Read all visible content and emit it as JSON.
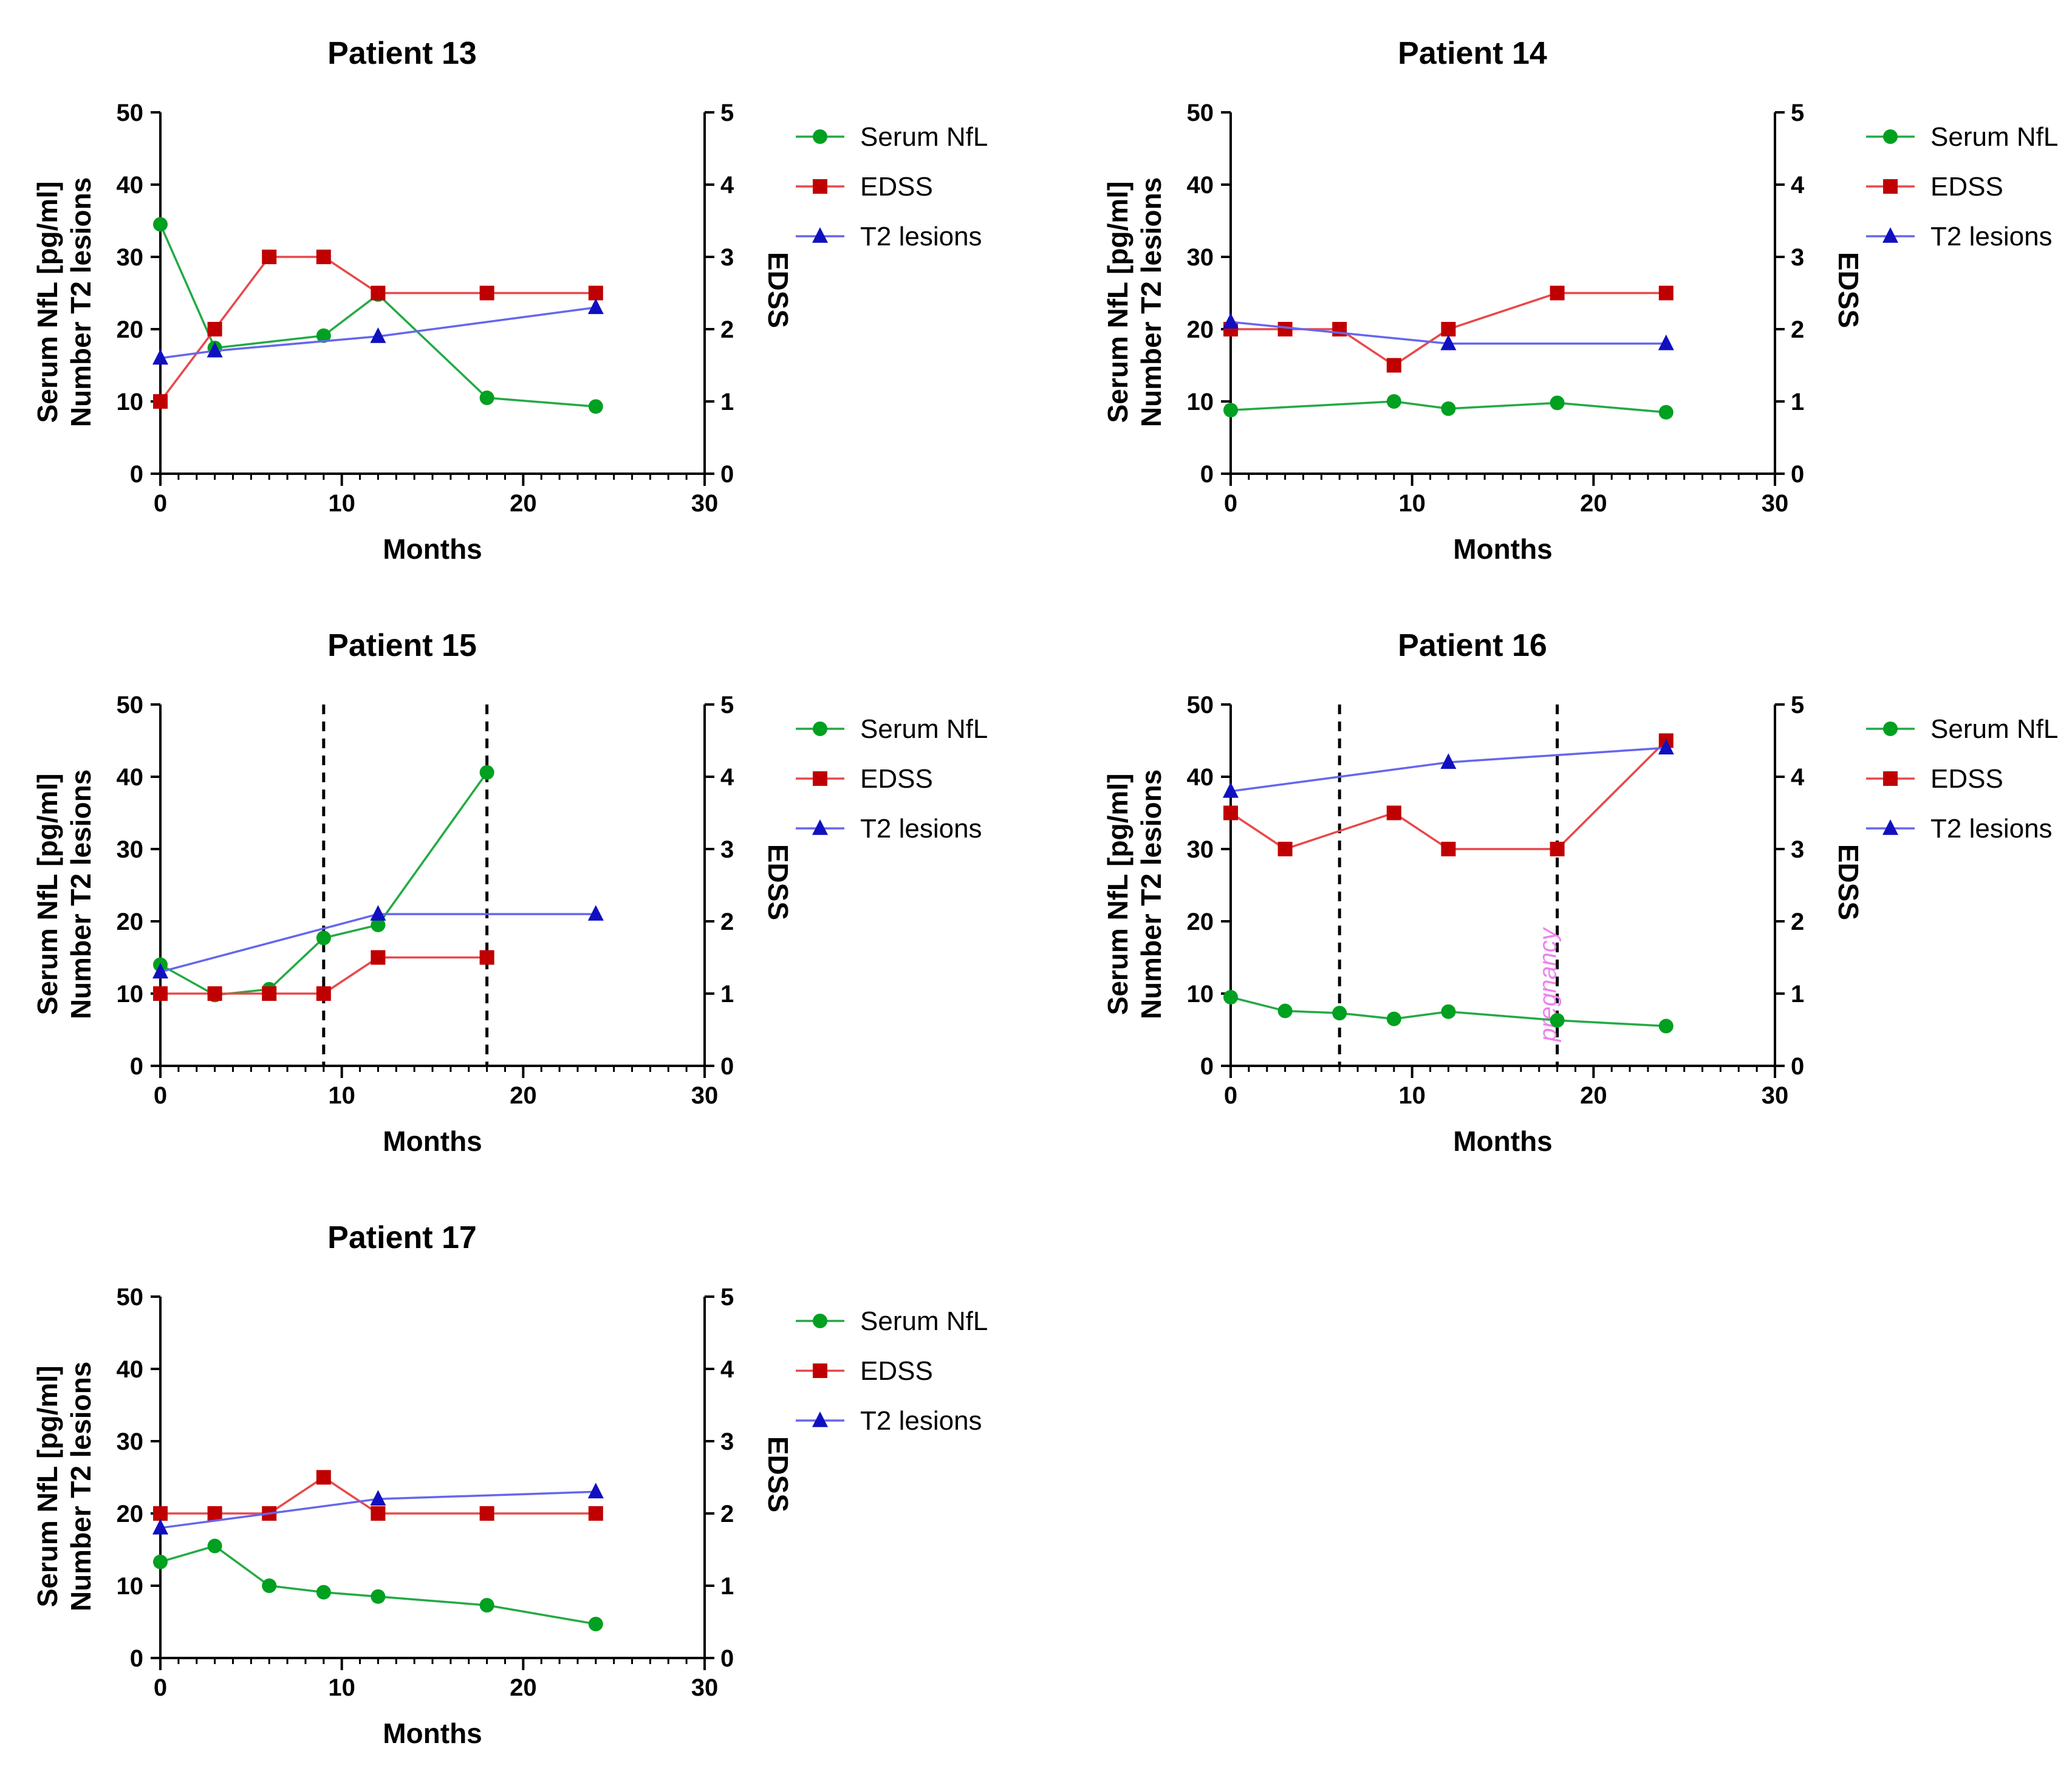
{
  "chart_data": [
    {
      "type": "line",
      "title": "Patient 13",
      "xlabel": "Months",
      "ylabel": [
        "Serum NfL [pg/ml]",
        "Number T2 lesions"
      ],
      "y2label": "EDSS",
      "xlim": [
        0,
        30
      ],
      "ylim": [
        0,
        50
      ],
      "y2lim": [
        0,
        5
      ],
      "xticks": [
        "0",
        "10",
        "20",
        "30"
      ],
      "yticks": [
        "0",
        "10",
        "20",
        "30",
        "40",
        "50"
      ],
      "y2ticks": [
        "0",
        "1",
        "2",
        "3",
        "4",
        "5"
      ],
      "series": [
        {
          "name": "Serum NfL",
          "axis": "left",
          "x": [
            0,
            3,
            9,
            12,
            18,
            24
          ],
          "y": [
            34.5,
            17.4,
            19.1,
            24.8,
            10.5,
            9.3
          ]
        },
        {
          "name": "EDSS",
          "axis": "right",
          "x": [
            0,
            3,
            6,
            9,
            12,
            18,
            24
          ],
          "y": [
            1.0,
            2.0,
            3.0,
            3.0,
            2.5,
            2.5,
            2.5
          ]
        },
        {
          "name": "T2 lesions",
          "axis": "left",
          "x": [
            0,
            3,
            12,
            24
          ],
          "y": [
            16,
            17,
            19,
            23
          ]
        }
      ],
      "vlines": []
    },
    {
      "type": "line",
      "title": "Patient 14",
      "xlabel": "Months",
      "ylabel": [
        "Serum NfL [pg/ml]",
        "Number T2 lesions"
      ],
      "y2label": "EDSS",
      "xlim": [
        0,
        30
      ],
      "ylim": [
        0,
        50
      ],
      "y2lim": [
        0,
        5
      ],
      "xticks": [
        "0",
        "10",
        "20",
        "30"
      ],
      "yticks": [
        "0",
        "10",
        "20",
        "30",
        "40",
        "50"
      ],
      "y2ticks": [
        "0",
        "1",
        "2",
        "3",
        "4",
        "5"
      ],
      "series": [
        {
          "name": "Serum NfL",
          "axis": "left",
          "x": [
            0,
            9,
            12,
            18,
            24
          ],
          "y": [
            8.8,
            10.0,
            9.0,
            9.8,
            8.5
          ]
        },
        {
          "name": "EDSS",
          "axis": "right",
          "x": [
            0,
            3,
            6,
            9,
            12,
            18,
            24
          ],
          "y": [
            2.0,
            2.0,
            2.0,
            1.5,
            2.0,
            2.5,
            2.5
          ]
        },
        {
          "name": "T2 lesions",
          "axis": "left",
          "x": [
            0,
            12,
            24
          ],
          "y": [
            21,
            18,
            18
          ]
        }
      ],
      "vlines": []
    },
    {
      "type": "line",
      "title": "Patient 15",
      "xlabel": "Months",
      "ylabel": [
        "Serum NfL [pg/ml]",
        "Number T2 lesions"
      ],
      "y2label": "EDSS",
      "xlim": [
        0,
        30
      ],
      "ylim": [
        0,
        50
      ],
      "y2lim": [
        0,
        5
      ],
      "xticks": [
        "0",
        "10",
        "20",
        "30"
      ],
      "yticks": [
        "0",
        "10",
        "20",
        "30",
        "40",
        "50"
      ],
      "y2ticks": [
        "0",
        "1",
        "2",
        "3",
        "4",
        "5"
      ],
      "series": [
        {
          "name": "Serum NfL",
          "axis": "left",
          "x": [
            0,
            3,
            6,
            9,
            12,
            18
          ],
          "y": [
            14.0,
            9.8,
            10.6,
            17.7,
            19.5,
            40.6
          ]
        },
        {
          "name": "EDSS",
          "axis": "right",
          "x": [
            0,
            3,
            6,
            9,
            12,
            18
          ],
          "y": [
            1.0,
            1.0,
            1.0,
            1.0,
            1.5,
            1.5
          ]
        },
        {
          "name": "T2 lesions",
          "axis": "left",
          "x": [
            0,
            12,
            24
          ],
          "y": [
            13,
            21,
            21
          ]
        }
      ],
      "vlines": [
        9,
        18
      ]
    },
    {
      "type": "line",
      "title": "Patient 16",
      "xlabel": "Months",
      "ylabel": [
        "Serum NfL [pg/ml]",
        "Number T2 lesions"
      ],
      "y2label": "EDSS",
      "xlim": [
        0,
        30
      ],
      "ylim": [
        0,
        50
      ],
      "y2lim": [
        0,
        5
      ],
      "xticks": [
        "0",
        "10",
        "20",
        "30"
      ],
      "yticks": [
        "0",
        "10",
        "20",
        "30",
        "40",
        "50"
      ],
      "y2ticks": [
        "0",
        "1",
        "2",
        "3",
        "4",
        "5"
      ],
      "series": [
        {
          "name": "Serum NfL",
          "axis": "left",
          "x": [
            0,
            3,
            6,
            9,
            12,
            18,
            24
          ],
          "y": [
            9.5,
            7.6,
            7.3,
            6.5,
            7.5,
            6.3,
            5.5
          ]
        },
        {
          "name": "EDSS",
          "axis": "right",
          "x": [
            0,
            3,
            9,
            12,
            18,
            24
          ],
          "y": [
            3.5,
            3.0,
            3.5,
            3.0,
            3.0,
            4.5
          ]
        },
        {
          "name": "T2 lesions",
          "axis": "left",
          "x": [
            0,
            12,
            24
          ],
          "y": [
            38,
            42,
            44
          ]
        }
      ],
      "vlines": [
        6,
        18
      ],
      "annotation": {
        "text": "pregnancy",
        "x": 18
      }
    },
    {
      "type": "line",
      "title": "Patient 17",
      "xlabel": "Months",
      "ylabel": [
        "Serum NfL [pg/ml]",
        "Number T2 lesions"
      ],
      "y2label": "EDSS",
      "xlim": [
        0,
        30
      ],
      "ylim": [
        0,
        50
      ],
      "y2lim": [
        0,
        5
      ],
      "xticks": [
        "0",
        "10",
        "20",
        "30"
      ],
      "yticks": [
        "0",
        "10",
        "20",
        "30",
        "40",
        "50"
      ],
      "y2ticks": [
        "0",
        "1",
        "2",
        "3",
        "4",
        "5"
      ],
      "series": [
        {
          "name": "Serum NfL",
          "axis": "left",
          "x": [
            0,
            3,
            6,
            9,
            12,
            18,
            24
          ],
          "y": [
            13.3,
            15.5,
            10.0,
            9.1,
            8.5,
            7.3,
            4.7
          ]
        },
        {
          "name": "EDSS",
          "axis": "right",
          "x": [
            0,
            3,
            6,
            9,
            12,
            18,
            24
          ],
          "y": [
            2.0,
            2.0,
            2.0,
            2.5,
            2.0,
            2.0,
            2.0
          ]
        },
        {
          "name": "T2 lesions",
          "axis": "left",
          "x": [
            0,
            12,
            24
          ],
          "y": [
            18,
            22,
            23
          ]
        }
      ],
      "vlines": []
    }
  ],
  "legend": {
    "entries": [
      "Serum NfL",
      "EDSS",
      "T2 lesions"
    ]
  },
  "colors": {
    "nfl_line": "#22aa44",
    "nfl_marker": "#00a020",
    "edss_line": "#e8484a",
    "edss_marker": "#c00000",
    "t2_line": "#6666ee",
    "t2_marker": "#1010c0",
    "axis": "#000000",
    "vline": "#000000"
  },
  "series_style": {
    "Serum NfL": {
      "marker": "circle-icon"
    },
    "EDSS": {
      "marker": "square-icon"
    },
    "T2 lesions": {
      "marker": "triangle-icon"
    }
  }
}
